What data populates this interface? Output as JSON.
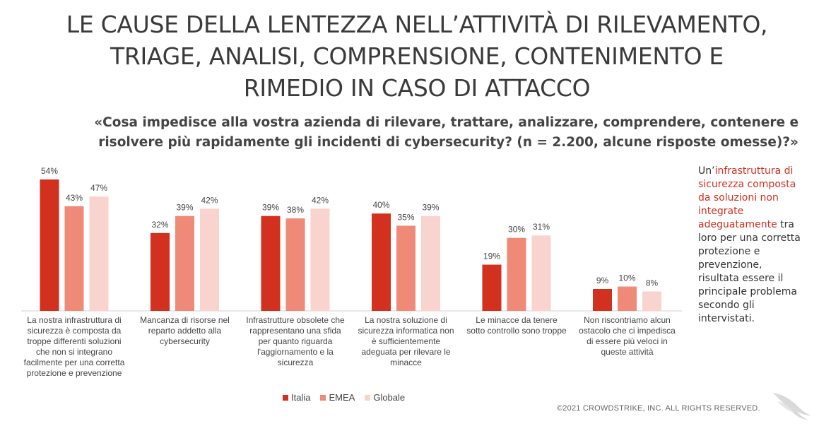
{
  "title_lines": [
    "LE CAUSE DELLA LENTEZZA NELL’ATTIVITÀ DI RILEVAMENTO,",
    "TRIAGE, ANALISI, COMPRENSIONE, CONTENIMENTO E",
    "RIMEDIO IN CASO DI ATTACCO"
  ],
  "subtitle_lines": [
    "«Cosa impedisce alla vostra azienda di rilevare, trattare, analizzare, comprendere, contenere e",
    "risolvere più rapidamente gli incidenti di cybersecurity? (n = 2.200, alcune risposte omesse)?»"
  ],
  "side_note": {
    "prefix": "Un’",
    "highlight": "infrastruttura di sicurezza composta da soluzioni non integrate adeguatamente",
    "suffix": " tra loro per una corretta protezione e prevenzione, risultata essere il principale problema secondo gli intervistati."
  },
  "copyright": "©2021 CROWDSTRIKE, INC. ALL RIGHTS RESERVED.",
  "colors": {
    "italia": "#d2311f",
    "emea": "#ef8a78",
    "globale": "#f9d4cf",
    "highlight": "#d32f1f"
  },
  "chart_data": {
    "type": "bar",
    "categories": [
      [
        "La nostra infrastruttura di",
        "sicurezza è composta da",
        "troppe differenti soluzioni",
        "che non si integrano",
        "facilmente per una corretta",
        "protezione e prevenzione"
      ],
      [
        "Mancanza di risorse nel",
        "reparto addetto alla",
        "cybersecurity"
      ],
      [
        "Infrastrutture obsolete che",
        "rappresentano una sfida",
        "per quanto riguarda",
        "l'aggiornamento e la",
        "sicurezza"
      ],
      [
        "La nostra soluzione di",
        "sicurezza informatica non",
        "è sufficientemente",
        "adeguata per rilevare le",
        "minacce"
      ],
      [
        "Le minacce da tenere",
        "sotto controllo sono troppe"
      ],
      [
        "Non riscontriamo alcun",
        "ostacolo che ci impedisca",
        "di essere più veloci in",
        "queste attività"
      ]
    ],
    "series": [
      {
        "name": "Italia",
        "values": [
          54,
          32,
          39,
          40,
          19,
          9
        ],
        "labels": [
          "54%",
          "32%",
          "39%",
          "40%",
          "19%",
          "9%"
        ]
      },
      {
        "name": "EMEA",
        "values": [
          43,
          39,
          38,
          35,
          30,
          10
        ],
        "labels": [
          "43%",
          "39%",
          "38%",
          "35%",
          "30%",
          "10%"
        ]
      },
      {
        "name": "Globale",
        "values": [
          47,
          42,
          42,
          39,
          31,
          8
        ],
        "labels": [
          "47%",
          "42%",
          "42%",
          "39%",
          "31%",
          "8%"
        ]
      }
    ],
    "ylim": [
      0,
      54
    ],
    "legend_position": "bottom",
    "grid": false
  }
}
